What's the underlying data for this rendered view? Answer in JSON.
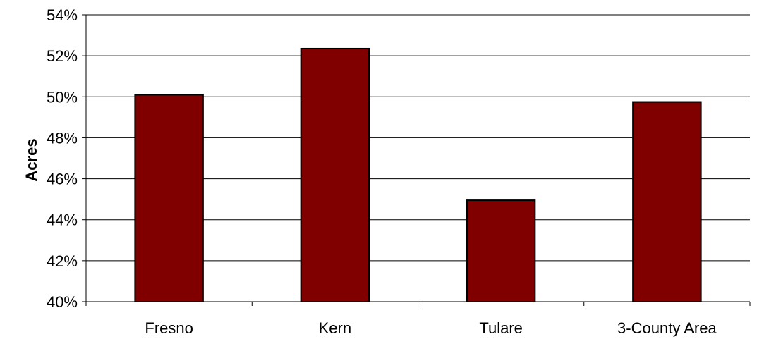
{
  "chart_data": {
    "type": "bar",
    "title": "",
    "xlabel": "",
    "ylabel": "Acres",
    "categories": [
      "Fresno",
      "Kern",
      "Tulare",
      "3-County Area"
    ],
    "series": [
      {
        "values": [
          50.1,
          52.35,
          44.95,
          49.75
        ]
      }
    ],
    "ylim": [
      40,
      54
    ],
    "yticks": [
      40,
      42,
      44,
      46,
      48,
      50,
      52,
      54
    ],
    "ytick_labels": [
      "40%",
      "42%",
      "44%",
      "46%",
      "48%",
      "50%",
      "52%",
      "54%"
    ],
    "grid": true,
    "legend": "none",
    "bar_color": "#800000",
    "bar_edge_color": "#000000"
  }
}
